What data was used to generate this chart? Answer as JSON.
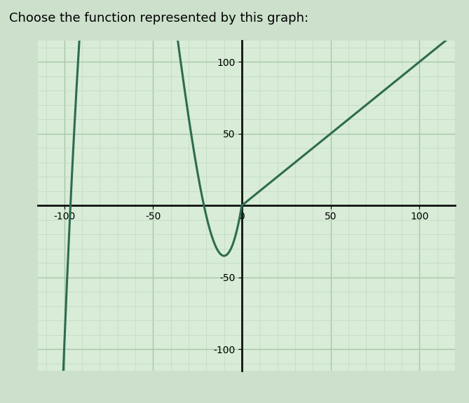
{
  "title": "Choose the function represented by this graph:",
  "xlim": [
    -115,
    120
  ],
  "ylim": [
    -115,
    115
  ],
  "xticks": [
    -100,
    -50,
    0,
    50,
    100
  ],
  "yticks": [
    -100,
    -50,
    0,
    50,
    100
  ],
  "line_color": "#2d6b4f",
  "line_width": 2.2,
  "grid_major_color": "#a8c8a8",
  "grid_minor_color": "#c0d8c0",
  "background_color": "#cce0cc",
  "plot_bg_color": "#d8ecd8",
  "axis_color": "#111111",
  "title_fontsize": 13,
  "tick_fontsize": 10,
  "peak_x": -10,
  "peak_y": -36.8,
  "x_neg_end": -115,
  "scale": 10.0,
  "decay": 10.0
}
